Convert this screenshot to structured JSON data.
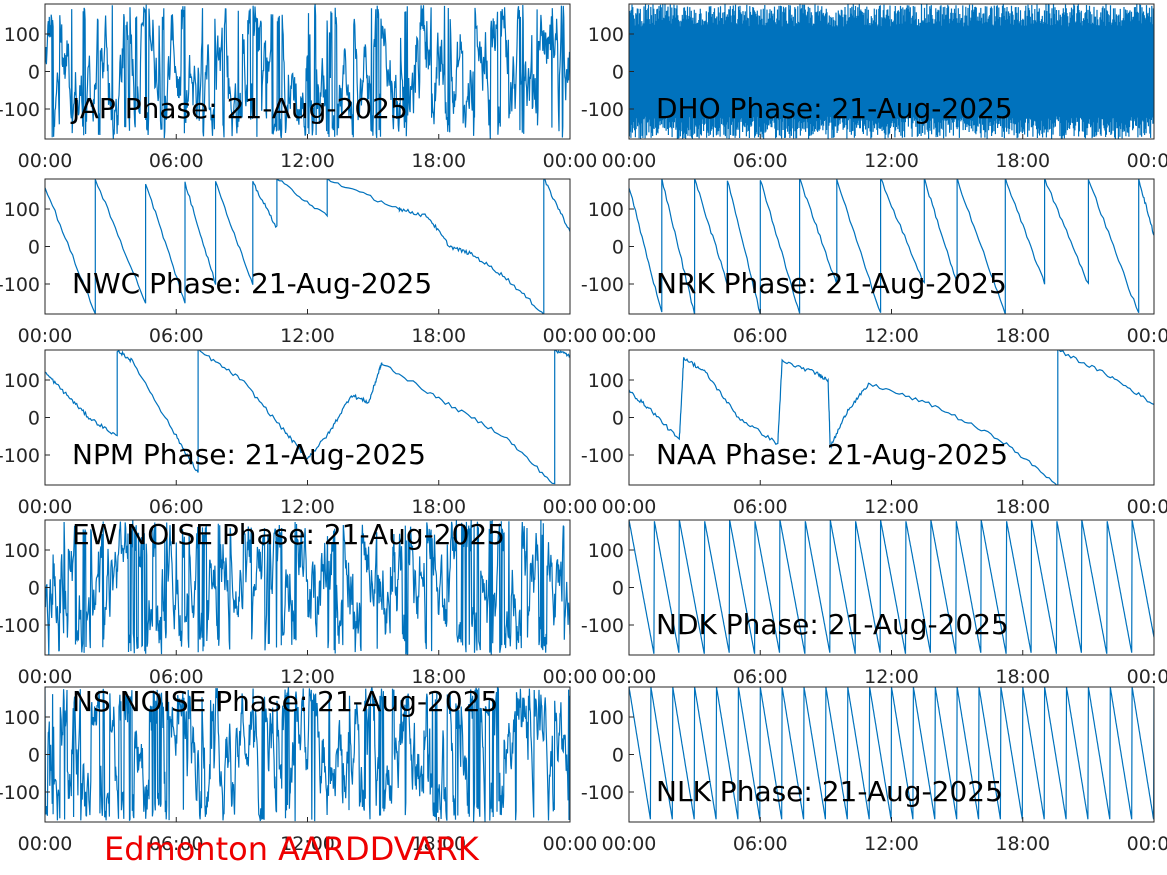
{
  "colors": {
    "trace": "#0072bd",
    "footer": "#ee0000",
    "axis": "#262626"
  },
  "footer_text": "Edmonton AARDDVARK",
  "chart_data": [
    {
      "type": "line",
      "title": "JAP Phase: 21-Aug-2025",
      "pattern": "noise",
      "xticks": [
        "00:00",
        "06:00",
        "12:00",
        "18:00",
        "00:00"
      ],
      "yticks": [
        "100",
        "0",
        "-100"
      ],
      "ylim": [
        -180,
        180
      ],
      "xlim_hours": [
        0,
        24
      ]
    },
    {
      "type": "line",
      "title": "DHO Phase: 21-Aug-2025",
      "pattern": "dense",
      "xticks": [
        "00:00",
        "06:00",
        "12:00",
        "18:00",
        "00:00"
      ],
      "yticks": [
        "100",
        "0",
        "-100"
      ],
      "ylim": [
        -180,
        180
      ],
      "xlim_hours": [
        0,
        24
      ]
    },
    {
      "type": "line",
      "title": "NWC Phase: 21-Aug-2025",
      "pattern": "segments",
      "x_hours": [
        0,
        2.3,
        2.3,
        4.6,
        4.6,
        6.4,
        6.4,
        7.8,
        7.8,
        9.5,
        9.5,
        10.6,
        10.6,
        12.9,
        12.9,
        16.2,
        16.2,
        17.5,
        18.5,
        19.5,
        21.0,
        22.8,
        22.8,
        24
      ],
      "y_deg": [
        160,
        -180,
        180,
        -150,
        170,
        -150,
        170,
        -100,
        170,
        -100,
        170,
        50,
        180,
        80,
        180,
        100,
        100,
        80,
        0,
        -20,
        -80,
        -180,
        180,
        40
      ],
      "xticks": [
        "00:00",
        "06:00",
        "12:00",
        "18:00",
        "00:00"
      ],
      "yticks": [
        "100",
        "0",
        "-100"
      ],
      "ylim": [
        -180,
        180
      ],
      "xlim_hours": [
        0,
        24
      ]
    },
    {
      "type": "line",
      "title": "NRK Phase: 21-Aug-2025",
      "pattern": "segments",
      "x_hours": [
        0,
        1.5,
        1.5,
        3.0,
        3.0,
        4.5,
        4.5,
        6.0,
        6.0,
        7.8,
        7.8,
        9.5,
        9.5,
        11.5,
        11.5,
        13.5,
        13.5,
        15.0,
        15.0,
        17.2,
        17.2,
        19.0,
        19.0,
        21.0,
        21.0,
        23.3,
        23.3,
        24
      ],
      "y_deg": [
        160,
        -180,
        180,
        -180,
        180,
        -100,
        180,
        -180,
        180,
        -180,
        180,
        -100,
        180,
        -180,
        180,
        -100,
        180,
        -100,
        180,
        -180,
        180,
        -100,
        180,
        -100,
        180,
        -180,
        180,
        30
      ],
      "xticks": [
        "00:00",
        "06:00",
        "12:00",
        "18:00",
        "00:00"
      ],
      "yticks": [
        "100",
        "0",
        "-100"
      ],
      "ylim": [
        -180,
        180
      ],
      "xlim_hours": [
        0,
        24
      ]
    },
    {
      "type": "line",
      "title": "NPM Phase: 21-Aug-2025",
      "pattern": "segments",
      "x_hours": [
        0,
        1.0,
        2.0,
        3.3,
        3.3,
        4.0,
        6.0,
        7.0,
        7.0,
        9.0,
        11.0,
        12.0,
        13.0,
        14.0,
        14.8,
        15.3,
        15.4,
        18.0,
        21.0,
        23.3,
        23.3,
        24
      ],
      "y_deg": [
        120,
        60,
        0,
        -50,
        180,
        150,
        -50,
        -150,
        180,
        100,
        -40,
        -110,
        -40,
        60,
        40,
        130,
        145,
        50,
        -50,
        -180,
        180,
        165
      ],
      "xticks": [
        "00:00",
        "06:00",
        "12:00",
        "18:00",
        "00:00"
      ],
      "yticks": [
        "100",
        "0",
        "-100"
      ],
      "ylim": [
        -180,
        180
      ],
      "xlim_hours": [
        0,
        24
      ]
    },
    {
      "type": "line",
      "title": "NAA Phase: 21-Aug-2025",
      "pattern": "segments",
      "x_hours": [
        0,
        1.0,
        2.3,
        2.5,
        3.5,
        5.0,
        6.8,
        7.0,
        8.5,
        9.1,
        9.2,
        10.0,
        11.0,
        14.0,
        17.0,
        19.6,
        19.6,
        22.0,
        24
      ],
      "y_deg": [
        70,
        20,
        -60,
        160,
        120,
        0,
        -70,
        150,
        120,
        100,
        -80,
        20,
        90,
        30,
        -60,
        -180,
        180,
        110,
        35
      ],
      "xticks": [
        "00:00",
        "06:00",
        "12:00",
        "18:00",
        "00:00"
      ],
      "yticks": [
        "100",
        "0",
        "-100"
      ],
      "ylim": [
        -180,
        180
      ],
      "xlim_hours": [
        0,
        24
      ]
    },
    {
      "type": "line",
      "title": "EW NOISE Phase: 21-Aug-2025",
      "pattern": "noise",
      "xticks": [
        "00:00",
        "06:00",
        "12:00",
        "18:00",
        "00:00"
      ],
      "yticks": [
        "100",
        "0",
        "-100"
      ],
      "ylim": [
        -180,
        180
      ],
      "xlim_hours": [
        0,
        24
      ]
    },
    {
      "type": "line",
      "title": "NDK Phase: 21-Aug-2025",
      "pattern": "sawtooth",
      "period_hours": 1.15,
      "xticks": [
        "00:00",
        "06:00",
        "12:00",
        "18:00",
        "00:00"
      ],
      "yticks": [
        "100",
        "0",
        "-100"
      ],
      "ylim": [
        -180,
        180
      ],
      "xlim_hours": [
        0,
        24
      ]
    },
    {
      "type": "line",
      "title": "NS NOISE Phase: 21-Aug-2025",
      "pattern": "noise",
      "xticks": [
        "00:00",
        "06:00",
        "12:00",
        "18:00",
        "00:00"
      ],
      "yticks": [
        "100",
        "0",
        "-100"
      ],
      "ylim": [
        -180,
        180
      ],
      "xlim_hours": [
        0,
        24
      ]
    },
    {
      "type": "line",
      "title": "NLK Phase: 21-Aug-2025",
      "pattern": "sawtooth",
      "period_hours": 1.0,
      "xticks": [
        "00:00",
        "06:00",
        "12:00",
        "18:00",
        "00:00"
      ],
      "yticks": [
        "100",
        "0",
        "-100"
      ],
      "ylim": [
        -180,
        180
      ],
      "xlim_hours": [
        0,
        24
      ]
    }
  ]
}
